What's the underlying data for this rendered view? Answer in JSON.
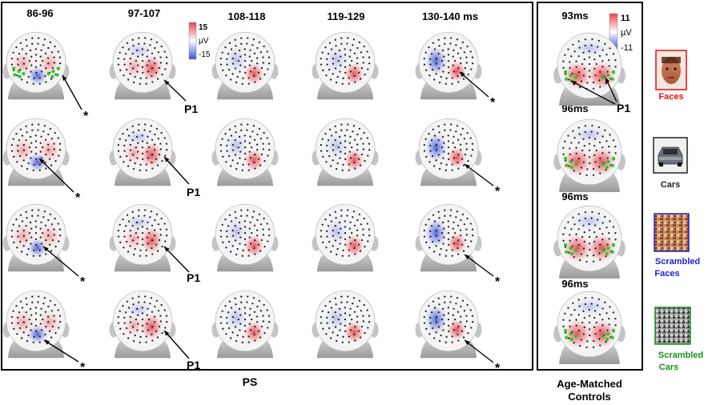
{
  "ps": {
    "time_windows": [
      "86-96",
      "97-107",
      "108-118",
      "119-129",
      "130-140 ms"
    ],
    "colorbar": {
      "max": "15",
      "unit": "µV",
      "min": "-15"
    },
    "peak_label": "P1",
    "marker": "*",
    "group_label": "PS"
  },
  "controls": {
    "latencies": [
      "93ms",
      "96ms",
      "96ms",
      "96ms"
    ],
    "colorbar": {
      "max": "11",
      "unit": "µV",
      "min": "-11"
    },
    "peak_label": "P1",
    "group_label_line1": "Age-Matched",
    "group_label_line2": "Controls"
  },
  "conditions": [
    {
      "label_line1": "Faces",
      "label_line2": "",
      "color": "#e01010"
    },
    {
      "label_line1": "Cars",
      "label_line2": "",
      "color": "#222222"
    },
    {
      "label_line1": "Scrambled",
      "label_line2": "Faces",
      "color": "#2020d0"
    },
    {
      "label_line1": "Scrambled",
      "label_line2": "Cars",
      "color": "#189018"
    }
  ],
  "colors": {
    "positive": "#e8454f",
    "negative": "#3d52d6",
    "electrode_roi": "#22cc22"
  }
}
